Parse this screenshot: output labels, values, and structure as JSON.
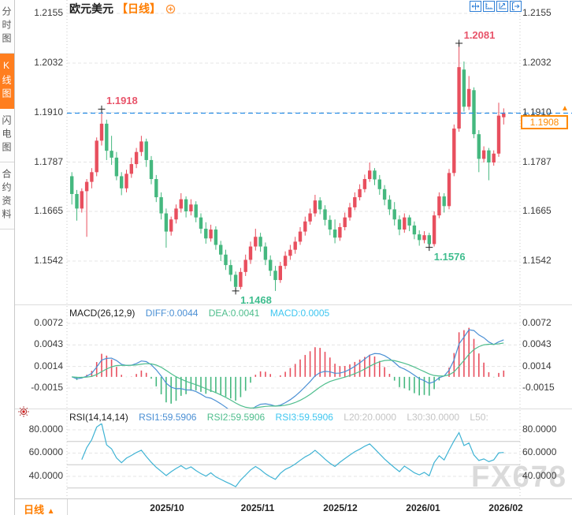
{
  "window": {
    "title": "欧元美元",
    "period_label": "【日线】"
  },
  "sidebar": {
    "tabs": [
      {
        "label": "分时图",
        "active": false
      },
      {
        "label": "K线图",
        "active": true
      },
      {
        "label": "闪电图",
        "active": false
      },
      {
        "label": "合约资料",
        "active": false
      }
    ]
  },
  "toolbar": {
    "icons": [
      "crosshair-pan-icon",
      "auto-scale-icon",
      "zoom-area-icon",
      "exit-icon"
    ]
  },
  "price_panel": {
    "axis_labels": [
      "1.2155",
      "1.2032",
      "1.1910",
      "1.1787",
      "1.1665",
      "1.1542"
    ],
    "axis_values": [
      1.2155,
      1.2032,
      1.191,
      1.1787,
      1.1665,
      1.1542
    ],
    "current_price": "1.1908",
    "annotations": [
      {
        "text": "1.1918",
        "type": "high",
        "candle": 6
      },
      {
        "text": "1.2081",
        "type": "high",
        "candle": 78
      },
      {
        "text": "1.1468",
        "type": "low",
        "candle": 33
      },
      {
        "text": "1.1576",
        "type": "low",
        "candle": 72
      }
    ]
  },
  "macd_panel": {
    "title": "MACD(26,12,9)",
    "diff_label": "DIFF:0.0044",
    "dea_label": "DEA:0.0041",
    "macd_label": "MACD:0.0005",
    "axis_labels": [
      "0.0072",
      "0.0043",
      "0.0014",
      "-0.0015"
    ],
    "axis_values": [
      0.0072,
      0.0043,
      0.0014,
      -0.0015
    ]
  },
  "rsi_panel": {
    "title": "RSI(14,14,14)",
    "rsi1_label": "RSI1:59.5906",
    "rsi2_label": "RSI2:59.5906",
    "rsi3_label": "RSI3:59.5906",
    "l20_label": "L20:20.0000",
    "l30_label": "L30:30.0000",
    "l50_label": "L50:",
    "axis_labels": [
      "80.0000",
      "60.0000",
      "40.0000"
    ],
    "axis_values": [
      80,
      60,
      40
    ],
    "level_lines": [
      70,
      50,
      30
    ]
  },
  "bottom_bar": {
    "period": "日线",
    "period_arrow": "▲",
    "dates": [
      "2025/10",
      "2025/11",
      "2025/12",
      "2026/01",
      "2026/02"
    ]
  },
  "watermark": "FX678",
  "colors": {
    "up": "#e84f5e",
    "down": "#45b87f",
    "annotation_high": "#e8546a",
    "annotation_low": "#3fbd8e",
    "diff_line": "#4a8fd4",
    "dea_line": "#4fbe8d",
    "rsi_line": "#3fb3d4",
    "grid": "#e4e4e4",
    "level_line": "#c8c8c8",
    "current_line": "#2b8fe8",
    "accent_orange": "#ff7e00",
    "tag_border": "#ff8a00",
    "toolbar_blue": "#2f7fd6"
  },
  "chart_data": {
    "type": "candlestick",
    "symbol": "欧元美元",
    "interval": "日线",
    "current_price": 1.1908,
    "price_axis_range": [
      1.1542,
      1.2155
    ],
    "candles": [
      [
        1.1752,
        1.1762,
        1.1682,
        1.1708
      ],
      [
        1.1708,
        1.1718,
        1.1642,
        1.1672
      ],
      [
        1.1672,
        1.1722,
        1.1662,
        1.1715
      ],
      [
        1.1715,
        1.1745,
        1.1602,
        1.1738
      ],
      [
        1.1738,
        1.1772,
        1.1722,
        1.1762
      ],
      [
        1.1762,
        1.1848,
        1.1752,
        1.184
      ],
      [
        1.184,
        1.1918,
        1.1828,
        1.1882
      ],
      [
        1.1882,
        1.1892,
        1.1792,
        1.1815
      ],
      [
        1.1815,
        1.1852,
        1.178,
        1.1798
      ],
      [
        1.1798,
        1.1812,
        1.1742,
        1.1752
      ],
      [
        1.1752,
        1.1762,
        1.1705,
        1.1722
      ],
      [
        1.1722,
        1.1768,
        1.1712,
        1.1758
      ],
      [
        1.1758,
        1.1798,
        1.1748,
        1.1782
      ],
      [
        1.1782,
        1.1822,
        1.1772,
        1.1812
      ],
      [
        1.1812,
        1.1852,
        1.1802,
        1.1838
      ],
      [
        1.1838,
        1.1845,
        1.1775,
        1.1792
      ],
      [
        1.1792,
        1.1802,
        1.1732,
        1.1745
      ],
      [
        1.1745,
        1.1755,
        1.1688,
        1.17
      ],
      [
        1.17,
        1.1712,
        1.1645,
        1.166
      ],
      [
        1.166,
        1.1672,
        1.1575,
        1.1615
      ],
      [
        1.1615,
        1.1652,
        1.1605,
        1.1645
      ],
      [
        1.1645,
        1.1682,
        1.1635,
        1.1672
      ],
      [
        1.1672,
        1.171,
        1.1662,
        1.1695
      ],
      [
        1.1695,
        1.1702,
        1.165,
        1.1665
      ],
      [
        1.1665,
        1.1695,
        1.1655,
        1.1682
      ],
      [
        1.1682,
        1.169,
        1.1638,
        1.165
      ],
      [
        1.165,
        1.166,
        1.161,
        1.1622
      ],
      [
        1.1622,
        1.1638,
        1.1585,
        1.1598
      ],
      [
        1.1598,
        1.1632,
        1.159,
        1.162
      ],
      [
        1.162,
        1.1628,
        1.157,
        1.1582
      ],
      [
        1.1582,
        1.1592,
        1.1542,
        1.1558
      ],
      [
        1.1558,
        1.157,
        1.152,
        1.1532
      ],
      [
        1.1532,
        1.1545,
        1.1492,
        1.1508
      ],
      [
        1.1508,
        1.1516,
        1.1468,
        1.1478
      ],
      [
        1.1478,
        1.1525,
        1.1472,
        1.1515
      ],
      [
        1.1515,
        1.1558,
        1.1505,
        1.1545
      ],
      [
        1.1545,
        1.159,
        1.1535,
        1.1578
      ],
      [
        1.1578,
        1.1622,
        1.1568,
        1.1602
      ],
      [
        1.1602,
        1.1612,
        1.1565,
        1.1578
      ],
      [
        1.1578,
        1.1588,
        1.1532,
        1.1545
      ],
      [
        1.1545,
        1.1556,
        1.1505,
        1.1518
      ],
      [
        1.1518,
        1.153,
        1.1468,
        1.1495
      ],
      [
        1.1495,
        1.154,
        1.1488,
        1.153
      ],
      [
        1.153,
        1.1566,
        1.1522,
        1.1555
      ],
      [
        1.1555,
        1.1582,
        1.1545,
        1.157
      ],
      [
        1.157,
        1.1602,
        1.156,
        1.159
      ],
      [
        1.159,
        1.1626,
        1.1582,
        1.1615
      ],
      [
        1.1615,
        1.1652,
        1.1605,
        1.164
      ],
      [
        1.164,
        1.1672,
        1.1632,
        1.166
      ],
      [
        1.166,
        1.1706,
        1.1652,
        1.1692
      ],
      [
        1.1692,
        1.17,
        1.1658,
        1.167
      ],
      [
        1.167,
        1.168,
        1.163,
        1.1644
      ],
      [
        1.1644,
        1.1655,
        1.1606,
        1.162
      ],
      [
        1.162,
        1.1645,
        1.1586,
        1.16
      ],
      [
        1.16,
        1.1636,
        1.1592,
        1.1626
      ],
      [
        1.1626,
        1.1662,
        1.1618,
        1.165
      ],
      [
        1.165,
        1.1686,
        1.1642,
        1.1675
      ],
      [
        1.1675,
        1.1712,
        1.1668,
        1.17
      ],
      [
        1.17,
        1.1732,
        1.1692,
        1.172
      ],
      [
        1.172,
        1.1756,
        1.1712,
        1.1745
      ],
      [
        1.1745,
        1.1786,
        1.1738,
        1.1766
      ],
      [
        1.1766,
        1.1772,
        1.173,
        1.1744
      ],
      [
        1.1744,
        1.1755,
        1.1706,
        1.172
      ],
      [
        1.172,
        1.173,
        1.168,
        1.1694
      ],
      [
        1.1694,
        1.1705,
        1.1656,
        1.167
      ],
      [
        1.167,
        1.1688,
        1.163,
        1.1645
      ],
      [
        1.1645,
        1.1655,
        1.1606,
        1.162
      ],
      [
        1.162,
        1.166,
        1.1612,
        1.165
      ],
      [
        1.165,
        1.1656,
        1.1616,
        1.163
      ],
      [
        1.163,
        1.164,
        1.1596,
        1.1608
      ],
      [
        1.1608,
        1.1618,
        1.158,
        1.1594
      ],
      [
        1.1594,
        1.1616,
        1.1586,
        1.1606
      ],
      [
        1.1606,
        1.1612,
        1.1576,
        1.1584
      ],
      [
        1.1584,
        1.1665,
        1.1578,
        1.1655
      ],
      [
        1.1655,
        1.1712,
        1.1648,
        1.1702
      ],
      [
        1.1702,
        1.171,
        1.1662,
        1.1678
      ],
      [
        1.1678,
        1.177,
        1.167,
        1.176
      ],
      [
        1.176,
        1.188,
        1.1752,
        1.187
      ],
      [
        1.187,
        1.2081,
        1.1862,
        1.2022
      ],
      [
        1.2016,
        1.2036,
        1.1912,
        1.1924
      ],
      [
        1.1924,
        1.2,
        1.1916,
        1.1968
      ],
      [
        1.1965,
        1.1972,
        1.1846,
        1.1856
      ],
      [
        1.1856,
        1.1866,
        1.1762,
        1.1795
      ],
      [
        1.1795,
        1.1826,
        1.1786,
        1.1816
      ],
      [
        1.1816,
        1.1822,
        1.1742,
        1.1786
      ],
      [
        1.1786,
        1.1816,
        1.1778,
        1.1808
      ],
      [
        1.1808,
        1.1934,
        1.18,
        1.1902
      ],
      [
        1.1898,
        1.192,
        1.188,
        1.1908
      ]
    ],
    "indicators": {
      "macd": {
        "params": [
          26,
          12,
          9
        ],
        "last": {
          "diff": 0.0044,
          "dea": 0.0041,
          "macd": 0.0005
        }
      },
      "rsi": {
        "params": [
          14,
          14,
          14
        ],
        "last": [
          59.5906,
          59.5906,
          59.5906
        ]
      }
    }
  }
}
